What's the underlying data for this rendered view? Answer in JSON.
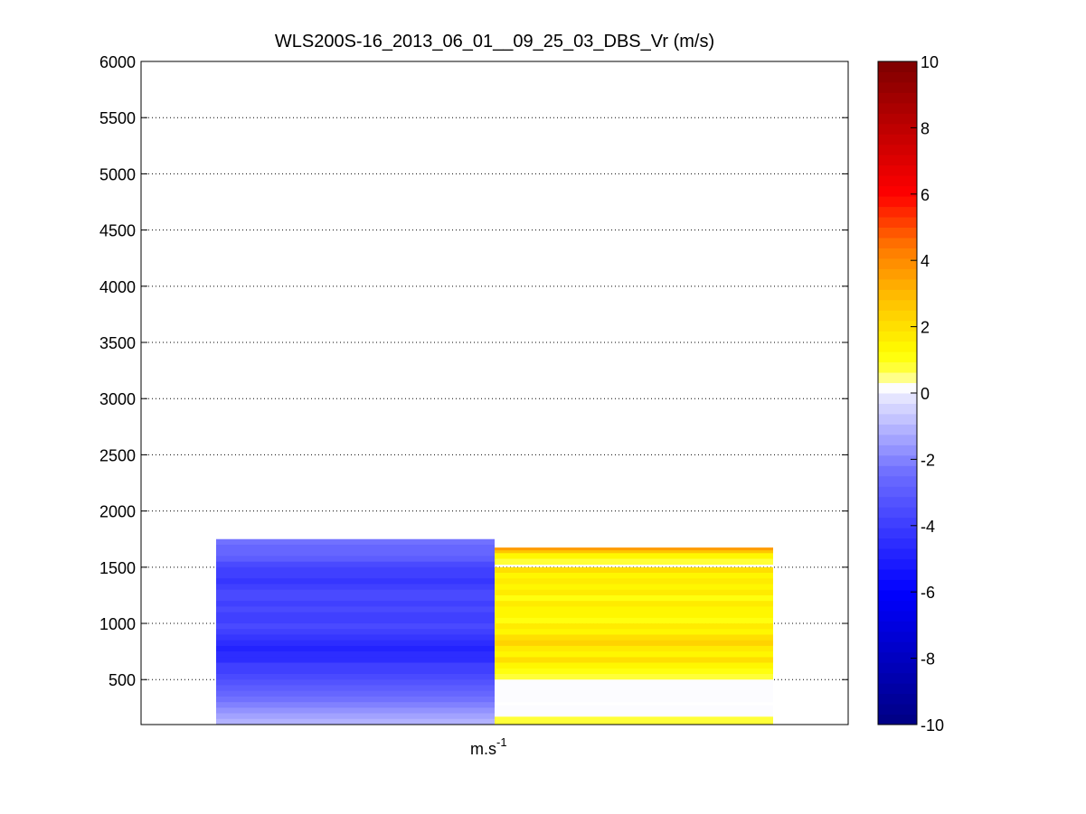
{
  "chart_data": {
    "type": "heatmap",
    "title": "WLS200S-16_2013_06_01__09_25_03_DBS_Vr (m/s)",
    "xlabel_base": "m.s",
    "xlabel_sup": "-1",
    "ylim": [
      100,
      6000
    ],
    "yticks": [
      500,
      1000,
      1500,
      2000,
      2500,
      3000,
      3500,
      4000,
      4500,
      5000,
      5500,
      6000
    ],
    "grid": "horizontal dotted",
    "columns": [
      {
        "top_altitude": 1750,
        "rows": [
          {
            "alt": [
              1700,
              1750
            ],
            "value": -2.3
          },
          {
            "alt": [
              1650,
              1700
            ],
            "value": -2.6
          },
          {
            "alt": [
              1600,
              1650
            ],
            "value": -2.8
          },
          {
            "alt": [
              1550,
              1600
            ],
            "value": -3.1
          },
          {
            "alt": [
              1500,
              1550
            ],
            "value": -3.5
          },
          {
            "alt": [
              1450,
              1500
            ],
            "value": -3.9
          },
          {
            "alt": [
              1400,
              1450
            ],
            "value": -3.8
          },
          {
            "alt": [
              1350,
              1400
            ],
            "value": -4.2
          },
          {
            "alt": [
              1300,
              1350
            ],
            "value": -3.8
          },
          {
            "alt": [
              1250,
              1300
            ],
            "value": -3.7
          },
          {
            "alt": [
              1200,
              1250
            ],
            "value": -3.6
          },
          {
            "alt": [
              1150,
              1200
            ],
            "value": -3.8
          },
          {
            "alt": [
              1100,
              1150
            ],
            "value": -3.5
          },
          {
            "alt": [
              1050,
              1100
            ],
            "value": -3.8
          },
          {
            "alt": [
              1000,
              1050
            ],
            "value": -4.0
          },
          {
            "alt": [
              950,
              1000
            ],
            "value": -3.7
          },
          {
            "alt": [
              900,
              950
            ],
            "value": -3.8
          },
          {
            "alt": [
              850,
              900
            ],
            "value": -4.1
          },
          {
            "alt": [
              800,
              850
            ],
            "value": -4.6
          },
          {
            "alt": [
              750,
              800
            ],
            "value": -4.7
          },
          {
            "alt": [
              700,
              750
            ],
            "value": -4.6
          },
          {
            "alt": [
              650,
              700
            ],
            "value": -4.4
          },
          {
            "alt": [
              600,
              650
            ],
            "value": -4.0
          },
          {
            "alt": [
              550,
              600
            ],
            "value": -3.8
          },
          {
            "alt": [
              500,
              550
            ],
            "value": -3.5
          },
          {
            "alt": [
              450,
              500
            ],
            "value": -3.2
          },
          {
            "alt": [
              400,
              450
            ],
            "value": -2.9
          },
          {
            "alt": [
              350,
              400
            ],
            "value": -2.6
          },
          {
            "alt": [
              300,
              350
            ],
            "value": -2.3
          },
          {
            "alt": [
              250,
              300
            ],
            "value": -2.0
          },
          {
            "alt": [
              200,
              250
            ],
            "value": -1.7
          },
          {
            "alt": [
              150,
              200
            ],
            "value": -1.4
          },
          {
            "alt": [
              100,
              150
            ],
            "value": -1.1
          }
        ]
      },
      {
        "top_altitude": 1675,
        "rows": [
          {
            "alt": [
              1650,
              1675
            ],
            "value": 3.6
          },
          {
            "alt": [
              1625,
              1650
            ],
            "value": 2.6
          },
          {
            "alt": [
              1575,
              1625
            ],
            "value": 1.3
          },
          {
            "alt": [
              1525,
              1575
            ],
            "value": 0.8
          },
          {
            "alt": [
              1500,
              1525
            ],
            "value": null
          },
          {
            "alt": [
              1450,
              1500
            ],
            "value": 2.1
          },
          {
            "alt": [
              1400,
              1450
            ],
            "value": 1.4
          },
          {
            "alt": [
              1350,
              1400
            ],
            "value": 1.8
          },
          {
            "alt": [
              1300,
              1350
            ],
            "value": 1.3
          },
          {
            "alt": [
              1250,
              1300
            ],
            "value": 1.6
          },
          {
            "alt": [
              1200,
              1250
            ],
            "value": 1.2
          },
          {
            "alt": [
              1150,
              1200
            ],
            "value": 1.7
          },
          {
            "alt": [
              1100,
              1150
            ],
            "value": 1.3
          },
          {
            "alt": [
              1050,
              1100
            ],
            "value": 1.5
          },
          {
            "alt": [
              1000,
              1050
            ],
            "value": 1.2
          },
          {
            "alt": [
              950,
              1000
            ],
            "value": 1.6
          },
          {
            "alt": [
              900,
              950
            ],
            "value": 1.3
          },
          {
            "alt": [
              850,
              900
            ],
            "value": 1.9
          },
          {
            "alt": [
              800,
              850
            ],
            "value": 2.2
          },
          {
            "alt": [
              750,
              800
            ],
            "value": 1.8
          },
          {
            "alt": [
              700,
              750
            ],
            "value": 1.4
          },
          {
            "alt": [
              650,
              700
            ],
            "value": 1.9
          },
          {
            "alt": [
              600,
              650
            ],
            "value": 1.3
          },
          {
            "alt": [
              550,
              600
            ],
            "value": 1.0
          },
          {
            "alt": [
              500,
              550
            ],
            "value": 0.8
          },
          {
            "alt": [
              300,
              500
            ],
            "value": 0.3
          },
          {
            "alt": [
              270,
              300
            ],
            "value": null
          },
          {
            "alt": [
              170,
              270
            ],
            "value": 0.3
          },
          {
            "alt": [
              100,
              170
            ],
            "value": 0.9
          }
        ]
      }
    ],
    "colorbar": {
      "range": [
        -10,
        10
      ],
      "ticks": [
        -10,
        -8,
        -6,
        -4,
        -2,
        0,
        2,
        4,
        6,
        8,
        10
      ],
      "levels": 64
    }
  }
}
